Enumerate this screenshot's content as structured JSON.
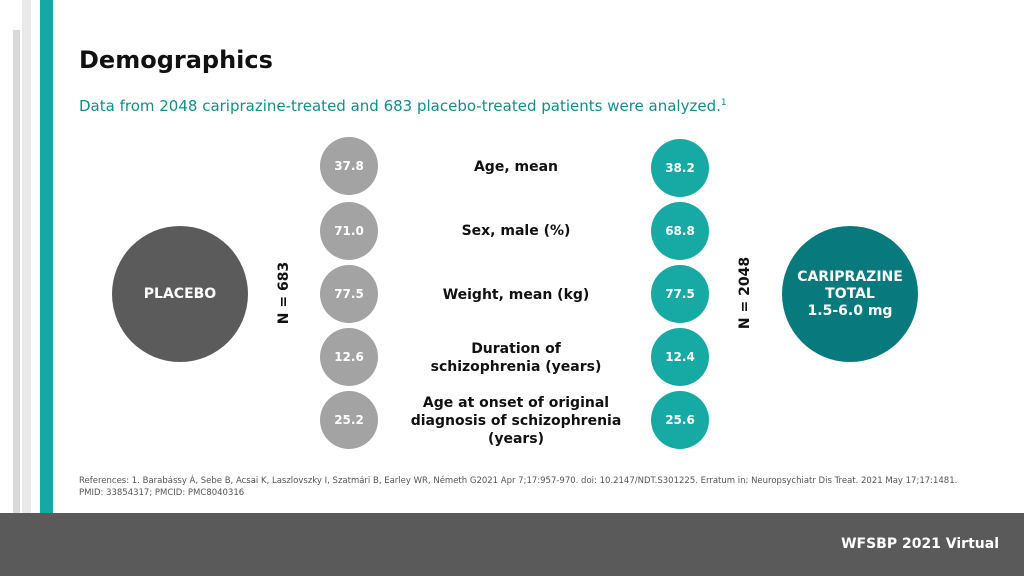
{
  "header": {
    "title": "Demographics",
    "subtitle": "Data from 2048 cariprazine-treated and 683 placebo-treated patients were analyzed.",
    "subtitle_ref": "1"
  },
  "placebo": {
    "label": "PLACEBO",
    "n_label": "N = 683",
    "color": "#5b5b5b"
  },
  "cariprazine": {
    "label_line1": "CARIPRAZINE",
    "label_line2": "TOTAL",
    "label_line3": "1.5-6.0 mg",
    "n_label": "N = 2048",
    "color": "#087a7e"
  },
  "rows": [
    {
      "label_line1": "Age, mean",
      "label_line2": "",
      "label_line3": "",
      "placebo": "37.8",
      "cariprazine": "38.2"
    },
    {
      "label_line1": "Sex, male (%)",
      "label_line2": "",
      "label_line3": "",
      "placebo": "71.0",
      "cariprazine": "68.8"
    },
    {
      "label_line1": "Weight, mean (kg)",
      "label_line2": "",
      "label_line3": "",
      "placebo": "77.5",
      "cariprazine": "77.5"
    },
    {
      "label_line1": "Duration of",
      "label_line2": "schizophrenia (years)",
      "label_line3": "",
      "placebo": "12.6",
      "cariprazine": "12.4"
    },
    {
      "label_line1": "Age at onset of original",
      "label_line2": "diagnosis of schizophrenia",
      "label_line3": "(years)",
      "placebo": "25.2",
      "cariprazine": "25.6"
    }
  ],
  "references": "References: 1. Barabássy Á, Sebe B, Acsai K, Laszlovszky I, Szatmári B, Earley WR, Németh G2021 Apr 7;17:957-970. doi: 10.2147/NDT.S301225. Erratum in: Neuropsychiatr Dis Treat. 2021 May 17;17:1481. PMID: 33854317; PMCID: PMC8040316",
  "footer": {
    "text": "WFSBP 2021 Virtual"
  }
}
